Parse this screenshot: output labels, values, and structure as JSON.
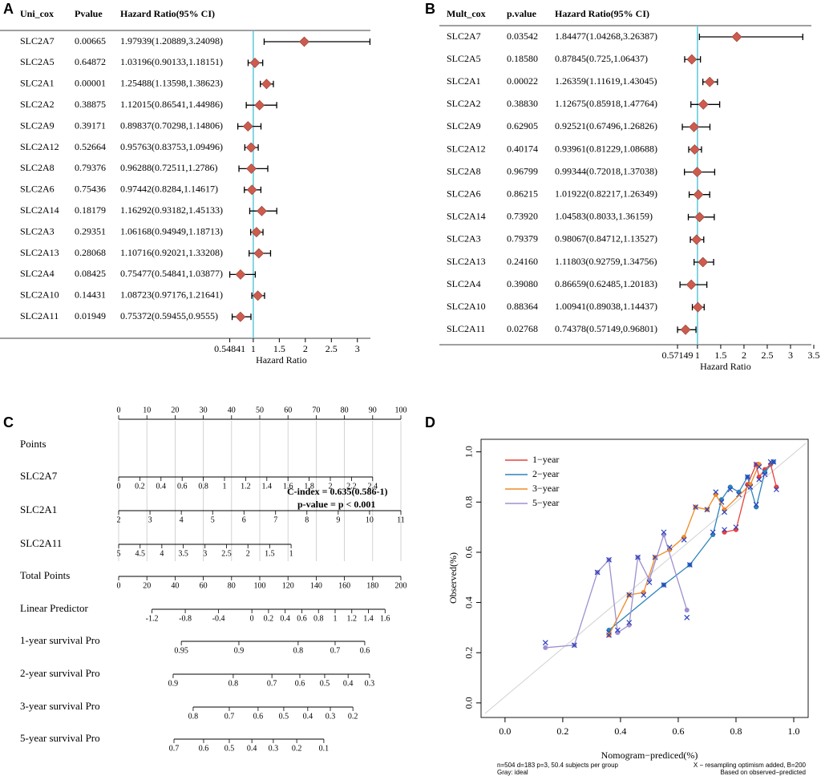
{
  "chart_data": [
    {
      "type": "forest",
      "panel": "A",
      "columns": [
        "Uni_cox",
        "Pvalue",
        "Hazard Ratio(95% CI)"
      ],
      "categories": [
        "SLC2A7",
        "SLC2A5",
        "SLC2A1",
        "SLC2A2",
        "SLC2A9",
        "SLC2A12",
        "SLC2A8",
        "SLC2A6",
        "SLC2A14",
        "SLC2A3",
        "SLC2A13",
        "SLC2A4",
        "SLC2A10",
        "SLC2A11"
      ],
      "pvalues": [
        "0.00665",
        "0.64872",
        "0.00001",
        "0.38875",
        "0.39171",
        "0.52664",
        "0.79376",
        "0.75436",
        "0.18179",
        "0.29351",
        "0.28068",
        "0.08425",
        "0.14431",
        "0.01949"
      ],
      "ci_labels": [
        "1.97939(1.20889,3.24098)",
        "1.03196(0.90133,1.18151)",
        "1.25488(1.13598,1.38623)",
        "1.12015(0.86541,1.44986)",
        "0.89837(0.70298,1.14806)",
        "0.95763(0.83753,1.09496)",
        "0.96288(0.72511,1.2786)",
        "0.97442(0.8284,1.14617)",
        "1.16292(0.93182,1.45133)",
        "1.06168(0.94949,1.18713)",
        "1.10716(0.92021,1.33208)",
        "0.75477(0.54841,1.03877)",
        "1.08723(0.97176,1.21641)",
        "0.75372(0.59455,0.9555)"
      ],
      "values": [
        1.97939,
        1.03196,
        1.25488,
        1.12015,
        0.89837,
        0.95763,
        0.96288,
        0.97442,
        1.16292,
        1.06168,
        1.10716,
        0.75477,
        1.08723,
        0.75372
      ],
      "lower": [
        1.20889,
        0.90133,
        1.13598,
        0.86541,
        0.70298,
        0.83753,
        0.72511,
        0.8284,
        0.93182,
        0.94949,
        0.92021,
        0.54841,
        0.97176,
        0.59455
      ],
      "upper": [
        3.24098,
        1.18151,
        1.38623,
        1.44986,
        1.14806,
        1.09496,
        1.2786,
        1.14617,
        1.45133,
        1.18713,
        1.33208,
        1.03877,
        1.21641,
        0.9555
      ],
      "xlabel": "Hazard Ratio",
      "xlim": [
        0.17,
        3.25
      ],
      "xticks": [
        0.54841,
        1,
        1.5,
        2,
        2.5,
        3
      ],
      "ref_line": 1,
      "ref_color": "#5bc8d8",
      "color": "#cd5c4e"
    },
    {
      "type": "forest",
      "panel": "B",
      "columns": [
        "Mult_cox",
        "p.value",
        "Hazard Ratio(95% CI)"
      ],
      "categories": [
        "SLC2A7",
        "SLC2A5",
        "SLC2A1",
        "SLC2A2",
        "SLC2A9",
        "SLC2A12",
        "SLC2A8",
        "SLC2A6",
        "SLC2A14",
        "SLC2A3",
        "SLC2A13",
        "SLC2A4",
        "SLC2A10",
        "SLC2A11"
      ],
      "pvalues": [
        "0.03542",
        "0.18580",
        "0.00022",
        "0.38830",
        "0.62905",
        "0.40174",
        "0.96799",
        "0.86215",
        "0.73920",
        "0.79379",
        "0.24160",
        "0.39080",
        "0.88364",
        "0.02768"
      ],
      "ci_labels": [
        "1.84477(1.04268,3.26387)",
        "0.87845(0.725,1.06437)",
        "1.26359(1.11619,1.43045)",
        "1.12675(0.85918,1.47764)",
        "0.92521(0.67496,1.26826)",
        "0.93961(0.81229,1.08688)",
        "0.99344(0.72018,1.37038)",
        "1.01922(0.82217,1.26349)",
        "1.04583(0.8033,1.36159)",
        "0.98067(0.84712,1.13527)",
        "1.11803(0.92759,1.34756)",
        "0.86659(0.62485,1.20183)",
        "1.00941(0.89038,1.14437)",
        "0.74378(0.57149,0.96801)"
      ],
      "values": [
        1.84477,
        0.87845,
        1.26359,
        1.12675,
        0.92521,
        0.93961,
        0.99344,
        1.01922,
        1.04583,
        0.98067,
        1.11803,
        0.86659,
        1.00941,
        0.74378
      ],
      "lower": [
        1.04268,
        0.725,
        1.11619,
        0.85918,
        0.67496,
        0.81229,
        0.72018,
        0.82217,
        0.8033,
        0.84712,
        0.92759,
        0.62485,
        0.89038,
        0.57149
      ],
      "upper": [
        3.26387,
        1.06437,
        1.43045,
        1.47764,
        1.26826,
        1.08688,
        1.37038,
        1.26349,
        1.36159,
        1.13527,
        1.34756,
        1.20183,
        1.14437,
        0.96801
      ],
      "xlabel": "Hazard Ratio",
      "xlim": [
        0.14,
        3.5
      ],
      "xticks": [
        0.57149,
        1,
        1.5,
        2,
        2.5,
        3,
        3.5
      ],
      "ref_line": 1,
      "ref_color": "#5bc8d8",
      "color": "#cd5c4e"
    },
    {
      "type": "nomogram",
      "panel": "C",
      "xlim": [
        0,
        100
      ],
      "scales": [
        {
          "name": "Points",
          "ticks": [
            0,
            10,
            20,
            30,
            40,
            50,
            60,
            70,
            80,
            90,
            100
          ],
          "positions": [
            0,
            10,
            20,
            30,
            40,
            50,
            60,
            70,
            80,
            90,
            100
          ]
        },
        {
          "name": "SLC2A7",
          "ticks": [
            0,
            0.2,
            0.4,
            0.6,
            0.8,
            1,
            1.2,
            1.4,
            1.6,
            1.8,
            2,
            2.2,
            2.4
          ],
          "positions": [
            0,
            7.5,
            15,
            22.5,
            30,
            37.5,
            45,
            52.5,
            60,
            67.5,
            75,
            82.5,
            90
          ]
        },
        {
          "name": "SLC2A1",
          "ticks": [
            2,
            3,
            4,
            5,
            6,
            7,
            8,
            9,
            10,
            11
          ],
          "positions": [
            0,
            11.1,
            22.2,
            33.3,
            44.4,
            55.6,
            66.7,
            77.8,
            88.9,
            100
          ]
        },
        {
          "name": "SLC2A11",
          "ticks": [
            5,
            4.5,
            4,
            3.5,
            3,
            2.5,
            2,
            1.5,
            1
          ],
          "positions": [
            0,
            7.6,
            15.3,
            22.9,
            30.6,
            38.2,
            45.8,
            53.5,
            61.1
          ]
        },
        {
          "name": "Total Points",
          "ticks": [
            0,
            20,
            40,
            60,
            80,
            100,
            120,
            140,
            160,
            180,
            200
          ],
          "positions": [
            0,
            10,
            20,
            30,
            40,
            50,
            60,
            70,
            80,
            90,
            100
          ]
        },
        {
          "name": "Linear Predictor",
          "ticks": [
            -1.2,
            -0.8,
            -0.4,
            0,
            0.2,
            0.4,
            0.6,
            0.8,
            1,
            1.2,
            1.4,
            1.6
          ],
          "positions": [
            11.8,
            23.6,
            35.4,
            47.2,
            53.1,
            59,
            64.9,
            70.8,
            76.7,
            82.6,
            88.5,
            94.4
          ]
        },
        {
          "name": "1-year survival Pro",
          "ticks": [
            0.95,
            0.9,
            0.8,
            0.7,
            0.6
          ],
          "positions": [
            22.2,
            42.6,
            63.6,
            76.7,
            87.2
          ]
        },
        {
          "name": "2-year survival Pro",
          "ticks": [
            0.9,
            0.8,
            0.7,
            0.6,
            0.5,
            0.4,
            0.3
          ],
          "positions": [
            19.3,
            40.6,
            54.3,
            64.2,
            73,
            81.3,
            88.9
          ]
        },
        {
          "name": "3-year survival Pro",
          "ticks": [
            0.8,
            0.7,
            0.6,
            0.5,
            0.4,
            0.3,
            0.2
          ],
          "positions": [
            26.4,
            39.2,
            49.4,
            58.5,
            67,
            75,
            83
          ]
        },
        {
          "name": "5-year survival Pro",
          "ticks": [
            0.7,
            0.6,
            0.5,
            0.4,
            0.3,
            0.2,
            0.1
          ],
          "positions": [
            19.6,
            30.1,
            39.2,
            47.2,
            54.8,
            63.1,
            72.7
          ]
        }
      ],
      "annotations": [
        "C-index = 0.635(0.586-1)",
        "p-value = p < 0.001"
      ],
      "annotation_color": "#e8191e"
    },
    {
      "type": "calibration",
      "panel": "D",
      "xlabel": "Nomogram−prediced(%)",
      "ylabel": "Observed(%)",
      "xlim": [
        -0.083,
        1.05
      ],
      "ylim": [
        -0.058,
        1.05
      ],
      "xticks": [
        {
          "value": 0,
          "label": "0.0"
        },
        0.2,
        0.4,
        0.6,
        0.8,
        {
          "value": 1,
          "label": "1.0"
        }
      ],
      "yticks": [
        {
          "value": 0,
          "label": "0.0"
        },
        0.2,
        0.4,
        0.6,
        0.8,
        {
          "value": 1,
          "label": "1.0"
        }
      ],
      "legend": "upper left",
      "corrected_color": "#2a3fbf",
      "notes": [
        "n=504 d=183 p=3, 50.4 subjects per group",
        "Gray: ideal",
        "X − resampling optimism added, B=200",
        "Based on observed−predicted"
      ],
      "series": [
        {
          "name": "1−year",
          "color": "#e8413c",
          "x": [
            0.76,
            0.8,
            0.84,
            0.87,
            0.88,
            0.9,
            0.92,
            0.94
          ],
          "values": [
            0.68,
            0.69,
            0.87,
            0.95,
            0.9,
            0.93,
            0.95,
            0.86
          ],
          "corrected": [
            0.69,
            0.7,
            0.86,
            0.95,
            0.89,
            0.92,
            0.96,
            0.85
          ]
        },
        {
          "name": "2−year",
          "color": "#2b83ba",
          "x": [
            0.36,
            0.55,
            0.64,
            0.72,
            0.75,
            0.78,
            0.81,
            0.84,
            0.87,
            0.9,
            0.93
          ],
          "values": [
            0.29,
            0.47,
            0.55,
            0.67,
            0.81,
            0.86,
            0.84,
            0.9,
            0.78,
            0.92,
            0.96
          ],
          "corrected": [
            0.28,
            0.47,
            0.55,
            0.68,
            0.8,
            0.85,
            0.83,
            0.9,
            0.79,
            0.91,
            0.96
          ]
        },
        {
          "name": "3−year",
          "color": "#f08a24",
          "x": [
            0.36,
            0.43,
            0.48,
            0.52,
            0.57,
            0.62,
            0.66,
            0.7,
            0.73,
            0.76,
            0.85,
            0.88
          ],
          "values": [
            0.27,
            0.43,
            0.44,
            0.58,
            0.61,
            0.66,
            0.78,
            0.77,
            0.83,
            0.77,
            0.87,
            0.95
          ],
          "corrected": [
            0.27,
            0.43,
            0.43,
            0.58,
            0.62,
            0.65,
            0.78,
            0.77,
            0.84,
            0.76,
            0.86,
            0.94
          ]
        },
        {
          "name": "5−year",
          "color": "#9e8fcf",
          "x": [
            0.14,
            0.24,
            0.32,
            0.36,
            0.39,
            0.43,
            0.46,
            0.5,
            0.55,
            0.63
          ],
          "values": [
            0.22,
            0.23,
            0.52,
            0.57,
            0.28,
            0.31,
            0.58,
            0.49,
            0.67,
            0.37
          ],
          "corrected": [
            0.24,
            0.23,
            0.52,
            0.57,
            0.29,
            0.32,
            0.58,
            0.48,
            0.68,
            0.34
          ]
        }
      ]
    }
  ]
}
